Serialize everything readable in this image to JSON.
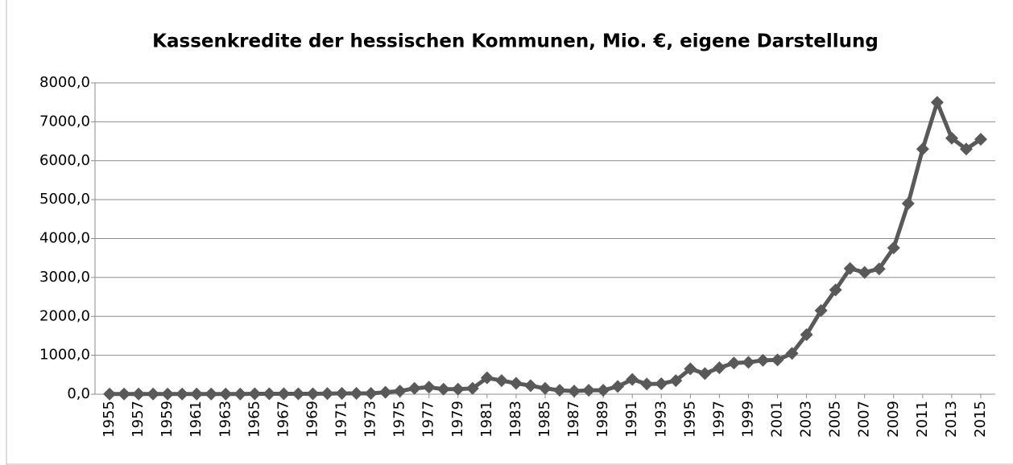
{
  "chart_data": {
    "type": "line",
    "title": "Kassenkredite der hessischen Kommunen, Mio. €, eigene Darstellung",
    "x": [
      1955,
      1956,
      1957,
      1958,
      1959,
      1960,
      1961,
      1962,
      1963,
      1964,
      1965,
      1966,
      1967,
      1968,
      1969,
      1970,
      1971,
      1972,
      1973,
      1974,
      1975,
      1976,
      1977,
      1978,
      1979,
      1980,
      1981,
      1982,
      1983,
      1984,
      1985,
      1986,
      1987,
      1988,
      1989,
      1990,
      1991,
      1992,
      1993,
      1994,
      1995,
      1996,
      1997,
      1998,
      1999,
      2000,
      2001,
      2002,
      2003,
      2004,
      2005,
      2006,
      2007,
      2008,
      2009,
      2010,
      2011,
      2012,
      2013,
      2014,
      2015
    ],
    "series": [
      {
        "color": "#595959",
        "values": [
          5,
          5,
          5,
          5,
          5,
          5,
          5,
          5,
          5,
          5,
          10,
          10,
          10,
          10,
          10,
          15,
          20,
          20,
          20,
          50,
          80,
          150,
          180,
          130,
          130,
          150,
          420,
          350,
          280,
          220,
          150,
          100,
          80,
          100,
          100,
          200,
          380,
          260,
          270,
          350,
          650,
          530,
          680,
          800,
          820,
          870,
          880,
          1050,
          1530,
          2150,
          2680,
          3230,
          3130,
          3220,
          3760,
          4900,
          6300,
          7500,
          6580,
          6300,
          6550
        ]
      }
    ],
    "xlim": [
      1954,
      2016
    ],
    "xticks": [
      1955,
      1957,
      1959,
      1961,
      1963,
      1965,
      1967,
      1969,
      1971,
      1973,
      1975,
      1977,
      1979,
      1981,
      1983,
      1985,
      1987,
      1989,
      1991,
      1993,
      1995,
      1997,
      1999,
      2001,
      2003,
      2005,
      2007,
      2009,
      2011,
      2013,
      2015
    ],
    "ylim": [
      0,
      8000
    ],
    "yticks": [
      {
        "value": 0,
        "label": "0,0"
      },
      {
        "value": 1000,
        "label": "1000,0"
      },
      {
        "value": 2000,
        "label": "2000,0"
      },
      {
        "value": 3000,
        "label": "3000,0"
      },
      {
        "value": 4000,
        "label": "4000,0"
      },
      {
        "value": 5000,
        "label": "5000,0"
      },
      {
        "value": 6000,
        "label": "6000,0"
      },
      {
        "value": 7000,
        "label": "7000,0"
      },
      {
        "value": 8000,
        "label": "8000,0"
      }
    ],
    "grid": true
  }
}
